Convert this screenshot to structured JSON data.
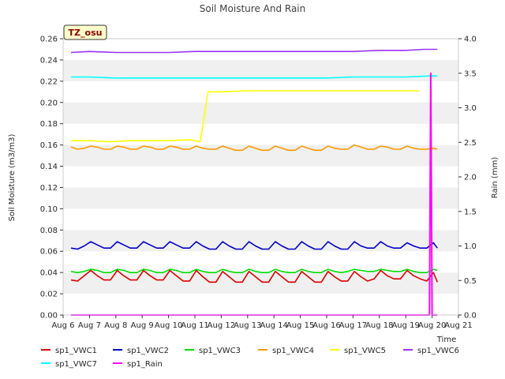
{
  "chart_data": {
    "type": "line",
    "title": "Soil Moisture And Rain",
    "site_label": "TZ_osu",
    "xlabel": "Time",
    "ylabel": "Soil Moisture (m3/m3)",
    "y2label": "Rain (mm)",
    "x_tick_labels": [
      "Aug 6",
      "Aug 7",
      "Aug 8",
      "Aug 9",
      "Aug 10",
      "Aug 11",
      "Aug 12",
      "Aug 13",
      "Aug 14",
      "Aug 15",
      "Aug 16",
      "Aug 17",
      "Aug 18",
      "Aug 19",
      "Aug 20",
      "Aug 21"
    ],
    "x_days": [
      6,
      7,
      8,
      9,
      10,
      11,
      12,
      13,
      14,
      15,
      16,
      17,
      18,
      19,
      20,
      21
    ],
    "xlim": [
      6,
      21
    ],
    "ylim": [
      0,
      0.26
    ],
    "y_ticks": [
      "0.00",
      "0.02",
      "0.04",
      "0.06",
      "0.08",
      "0.10",
      "0.12",
      "0.14",
      "0.16",
      "0.18",
      "0.20",
      "0.22",
      "0.24",
      "0.26"
    ],
    "y2lim": [
      0,
      4.0
    ],
    "y2_ticks": [
      "0.0",
      "0.5",
      "1.0",
      "1.5",
      "2.0",
      "2.5",
      "3.0",
      "3.5",
      "4.0"
    ],
    "grid": "horizontal bands",
    "legend_position": "bottom",
    "series": [
      {
        "name": "sp1_VWC1",
        "color": "#dd0000",
        "axis": "left",
        "x": [
          6.3,
          6.55,
          6.8,
          7.05,
          7.3,
          7.55,
          7.8,
          8.05,
          8.3,
          8.55,
          8.8,
          9.05,
          9.3,
          9.55,
          9.8,
          10.05,
          10.3,
          10.55,
          10.8,
          11.05,
          11.3,
          11.55,
          11.8,
          12.05,
          12.3,
          12.55,
          12.8,
          13.05,
          13.3,
          13.55,
          13.8,
          14.05,
          14.3,
          14.55,
          14.8,
          15.05,
          15.3,
          15.55,
          15.8,
          16.05,
          16.3,
          16.55,
          16.8,
          17.05,
          17.3,
          17.55,
          17.8,
          18.05,
          18.3,
          18.55,
          18.8,
          19.05,
          19.3,
          19.55,
          19.8,
          20.05,
          20.2
        ],
        "y": [
          0.033,
          0.032,
          0.037,
          0.042,
          0.037,
          0.033,
          0.033,
          0.042,
          0.037,
          0.033,
          0.033,
          0.042,
          0.037,
          0.033,
          0.033,
          0.042,
          0.037,
          0.032,
          0.032,
          0.042,
          0.036,
          0.031,
          0.031,
          0.041,
          0.036,
          0.031,
          0.031,
          0.041,
          0.036,
          0.031,
          0.031,
          0.041,
          0.036,
          0.031,
          0.031,
          0.041,
          0.036,
          0.031,
          0.031,
          0.041,
          0.036,
          0.032,
          0.032,
          0.041,
          0.036,
          0.032,
          0.034,
          0.042,
          0.037,
          0.034,
          0.034,
          0.042,
          0.037,
          0.034,
          0.032,
          0.04,
          0.031
        ]
      },
      {
        "name": "sp1_VWC2",
        "color": "#0000cc",
        "axis": "left",
        "x": [
          6.3,
          6.55,
          6.8,
          7.05,
          7.3,
          7.55,
          7.8,
          8.05,
          8.3,
          8.55,
          8.8,
          9.05,
          9.3,
          9.55,
          9.8,
          10.05,
          10.3,
          10.55,
          10.8,
          11.05,
          11.3,
          11.55,
          11.8,
          12.05,
          12.3,
          12.55,
          12.8,
          13.05,
          13.3,
          13.55,
          13.8,
          14.05,
          14.3,
          14.55,
          14.8,
          15.05,
          15.3,
          15.55,
          15.8,
          16.05,
          16.3,
          16.55,
          16.8,
          17.05,
          17.3,
          17.55,
          17.8,
          18.05,
          18.3,
          18.55,
          18.8,
          19.05,
          19.3,
          19.55,
          19.8,
          20.05,
          20.2
        ],
        "y": [
          0.063,
          0.062,
          0.065,
          0.069,
          0.066,
          0.063,
          0.063,
          0.069,
          0.066,
          0.063,
          0.063,
          0.069,
          0.066,
          0.063,
          0.063,
          0.069,
          0.066,
          0.063,
          0.063,
          0.069,
          0.065,
          0.062,
          0.062,
          0.069,
          0.065,
          0.062,
          0.062,
          0.069,
          0.065,
          0.062,
          0.062,
          0.069,
          0.065,
          0.062,
          0.062,
          0.069,
          0.065,
          0.062,
          0.062,
          0.069,
          0.065,
          0.062,
          0.062,
          0.069,
          0.065,
          0.063,
          0.063,
          0.069,
          0.065,
          0.063,
          0.063,
          0.068,
          0.065,
          0.063,
          0.063,
          0.068,
          0.063
        ]
      },
      {
        "name": "sp1_VWC3",
        "color": "#00dd00",
        "axis": "left",
        "x": [
          6.3,
          6.55,
          6.8,
          7.05,
          7.3,
          7.55,
          7.8,
          8.05,
          8.3,
          8.55,
          8.8,
          9.05,
          9.3,
          9.55,
          9.8,
          10.05,
          10.3,
          10.55,
          10.8,
          11.05,
          11.3,
          11.55,
          11.8,
          12.05,
          12.3,
          12.55,
          12.8,
          13.05,
          13.3,
          13.55,
          13.8,
          14.05,
          14.3,
          14.55,
          14.8,
          15.05,
          15.3,
          15.55,
          15.8,
          16.05,
          16.3,
          16.55,
          16.8,
          17.05,
          17.3,
          17.55,
          17.8,
          18.05,
          18.3,
          18.55,
          18.8,
          19.05,
          19.3,
          19.55,
          19.8,
          20.05,
          20.2
        ],
        "y": [
          0.041,
          0.04,
          0.041,
          0.043,
          0.042,
          0.04,
          0.04,
          0.043,
          0.042,
          0.04,
          0.04,
          0.043,
          0.042,
          0.04,
          0.04,
          0.043,
          0.042,
          0.04,
          0.04,
          0.043,
          0.041,
          0.04,
          0.04,
          0.043,
          0.041,
          0.04,
          0.04,
          0.043,
          0.041,
          0.04,
          0.04,
          0.043,
          0.041,
          0.04,
          0.04,
          0.043,
          0.041,
          0.04,
          0.04,
          0.043,
          0.041,
          0.04,
          0.041,
          0.043,
          0.042,
          0.041,
          0.041,
          0.043,
          0.042,
          0.041,
          0.041,
          0.043,
          0.041,
          0.04,
          0.04,
          0.043,
          0.042
        ]
      },
      {
        "name": "sp1_VWC4",
        "color": "#ff9900",
        "axis": "left",
        "x": [
          6.3,
          6.55,
          6.8,
          7.05,
          7.3,
          7.55,
          7.8,
          8.05,
          8.3,
          8.55,
          8.8,
          9.05,
          9.3,
          9.55,
          9.8,
          10.05,
          10.3,
          10.55,
          10.8,
          11.05,
          11.3,
          11.55,
          11.8,
          12.05,
          12.3,
          12.55,
          12.8,
          13.05,
          13.3,
          13.55,
          13.8,
          14.05,
          14.3,
          14.55,
          14.8,
          15.05,
          15.3,
          15.55,
          15.8,
          16.05,
          16.3,
          16.55,
          16.8,
          17.05,
          17.3,
          17.55,
          17.8,
          18.05,
          18.3,
          18.55,
          18.8,
          19.05,
          19.3,
          19.55,
          19.8,
          20.05,
          20.2
        ],
        "y": [
          0.158,
          0.156,
          0.157,
          0.159,
          0.158,
          0.156,
          0.156,
          0.159,
          0.158,
          0.156,
          0.156,
          0.159,
          0.158,
          0.156,
          0.156,
          0.159,
          0.158,
          0.156,
          0.156,
          0.159,
          0.157,
          0.156,
          0.156,
          0.159,
          0.157,
          0.155,
          0.155,
          0.159,
          0.157,
          0.155,
          0.155,
          0.159,
          0.157,
          0.155,
          0.155,
          0.159,
          0.157,
          0.155,
          0.155,
          0.159,
          0.157,
          0.156,
          0.156,
          0.16,
          0.158,
          0.156,
          0.156,
          0.159,
          0.158,
          0.156,
          0.156,
          0.159,
          0.157,
          0.156,
          0.156,
          0.157,
          0.156
        ]
      },
      {
        "name": "sp1_VWC5",
        "color": "#ffff00",
        "axis": "left",
        "x": [
          6.3,
          7.0,
          7.8,
          8.5,
          9.2,
          10.0,
          10.8,
          11.2,
          11.5,
          12.0,
          13.0,
          14.0,
          15.0,
          16.0,
          17.0,
          18.0,
          19.0,
          19.5
        ],
        "y": [
          0.164,
          0.164,
          0.163,
          0.164,
          0.164,
          0.164,
          0.165,
          0.163,
          0.21,
          0.21,
          0.211,
          0.211,
          0.211,
          0.211,
          0.211,
          0.211,
          0.211,
          0.211
        ]
      },
      {
        "name": "sp1_VWC6",
        "color": "#9933ff",
        "axis": "left",
        "x": [
          6.3,
          7.0,
          8.0,
          9.0,
          10.0,
          11.0,
          12.0,
          13.0,
          14.0,
          15.0,
          16.0,
          17.0,
          18.0,
          19.0,
          19.7,
          20.2
        ],
        "y": [
          0.247,
          0.248,
          0.247,
          0.247,
          0.247,
          0.248,
          0.248,
          0.248,
          0.248,
          0.248,
          0.248,
          0.248,
          0.249,
          0.249,
          0.25,
          0.25
        ]
      },
      {
        "name": "sp1_VWC7",
        "color": "#00ffff",
        "axis": "left",
        "x": [
          6.3,
          7.0,
          8.0,
          9.0,
          10.0,
          11.0,
          12.0,
          13.0,
          14.0,
          15.0,
          16.0,
          17.0,
          18.0,
          19.0,
          20.0,
          20.2
        ],
        "y": [
          0.224,
          0.224,
          0.223,
          0.223,
          0.223,
          0.223,
          0.223,
          0.223,
          0.223,
          0.223,
          0.223,
          0.224,
          0.224,
          0.224,
          0.225,
          0.225
        ]
      },
      {
        "name": "sp1_Rain",
        "color": "#ff00ff",
        "axis": "right",
        "x": [
          6.3,
          19.9,
          19.95,
          20.0,
          20.2
        ],
        "y": [
          0,
          0,
          3.5,
          0,
          0
        ]
      }
    ]
  }
}
